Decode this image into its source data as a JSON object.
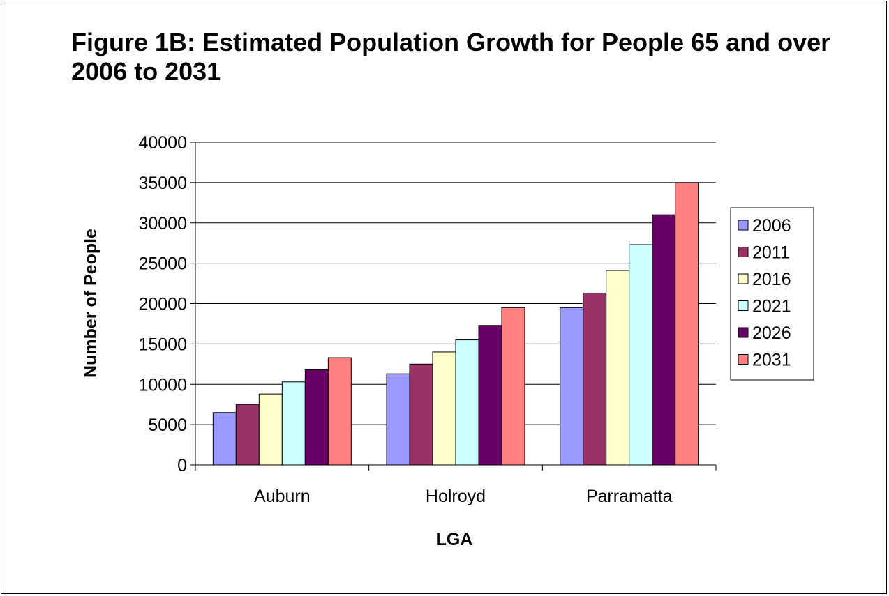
{
  "chart_data": {
    "type": "bar",
    "title": "Figure 1B: Estimated Population Growth for People 65 and over 2006 to 2031",
    "xlabel": "LGA",
    "ylabel": "Number of People",
    "categories": [
      "Auburn",
      "Holroyd",
      "Parramatta"
    ],
    "ylim": [
      0,
      40000
    ],
    "yticks": [
      0,
      5000,
      10000,
      15000,
      20000,
      25000,
      30000,
      35000,
      40000
    ],
    "grid": true,
    "legend_position": "right",
    "series": [
      {
        "name": "2006",
        "color": "#9999FF",
        "values": [
          6500,
          11300,
          19500
        ]
      },
      {
        "name": "2011",
        "color": "#993366",
        "values": [
          7500,
          12500,
          21300
        ]
      },
      {
        "name": "2016",
        "color": "#FFFFCC",
        "values": [
          8800,
          14000,
          24100
        ]
      },
      {
        "name": "2021",
        "color": "#CCFFFF",
        "values": [
          10300,
          15500,
          27300
        ]
      },
      {
        "name": "2026",
        "color": "#660066",
        "values": [
          11800,
          17300,
          31000
        ]
      },
      {
        "name": "2031",
        "color": "#FF8080",
        "values": [
          13300,
          19500,
          35000
        ]
      }
    ]
  }
}
